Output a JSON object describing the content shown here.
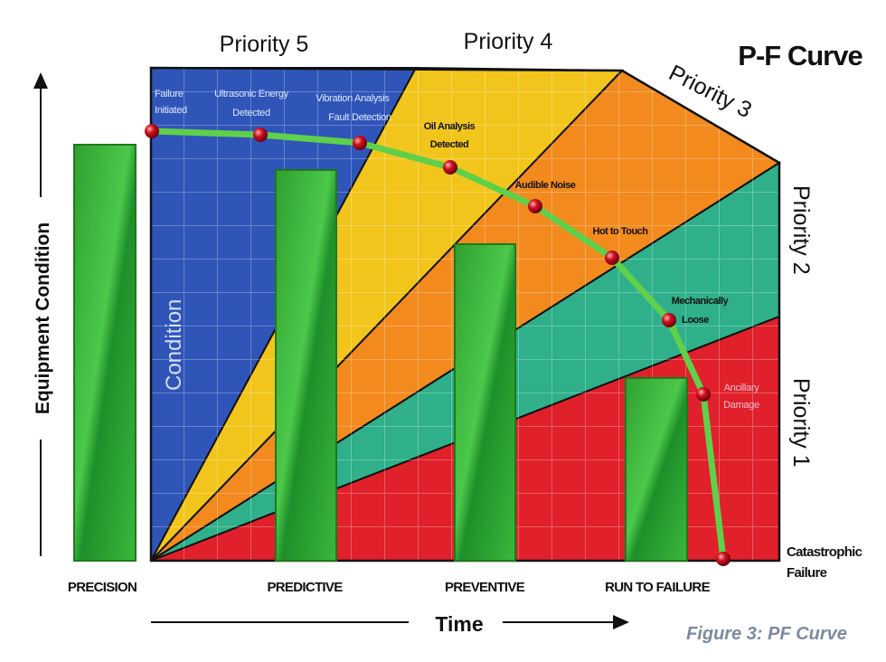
{
  "title": "P-F Curve",
  "caption": "Figure 3: PF Curve",
  "y_axis_label": "Equipment Condition",
  "x_axis_label": "Time",
  "region_label": "Condition",
  "priorities": {
    "p5": "Priority 5",
    "p4": "Priority 4",
    "p3": "Priority 3",
    "p2": "Priority 2",
    "p1": "Priority 1"
  },
  "categories": [
    "PRECISION",
    "PREDICTIVE",
    "PREVENTIVE",
    "RUN TO FAILURE"
  ],
  "events": [
    {
      "line1": "Failure",
      "line2": "Initiated"
    },
    {
      "line1": "Ultrasonic Energy",
      "line2": "Detected"
    },
    {
      "line1": "Vibration Analysis",
      "line2": "Fault Detection"
    },
    {
      "line1": "Oil Analysis",
      "line2": "Detected"
    },
    {
      "line1": "Audible Noise",
      "line2": ""
    },
    {
      "line1": "Hot to Touch",
      "line2": ""
    },
    {
      "line1": "Mechanically",
      "line2": "Loose"
    },
    {
      "line1": "Ancillary",
      "line2": "Damage"
    },
    {
      "line1": "Catastrophic",
      "line2": "Failure"
    }
  ],
  "colors": {
    "priority5": "#2f55b8",
    "priority4": "#f2c51c",
    "priority3": "#f28a1e",
    "priority2": "#2fb08a",
    "priority1": "#e0202a",
    "bars": "#3cb83c",
    "curve": "#5fd04a",
    "points": "#c0101a",
    "caption": "#7a8aa0"
  }
}
